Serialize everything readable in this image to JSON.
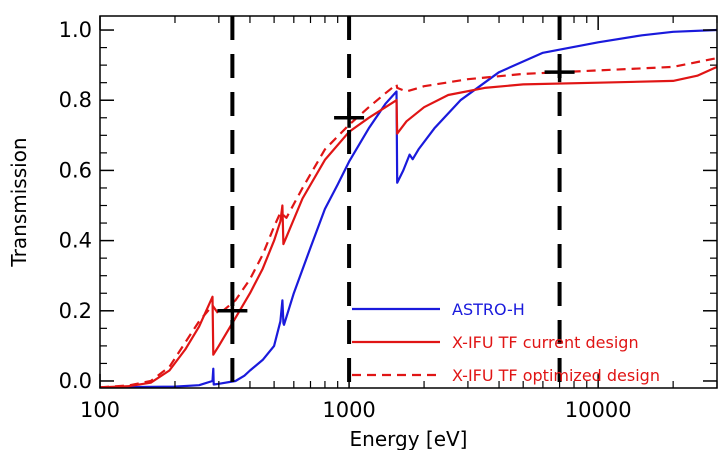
{
  "chart_data": {
    "type": "line",
    "xlabel": "Energy [eV]",
    "ylabel": "Transmission",
    "xscale": "log",
    "xlim": [
      100,
      30000
    ],
    "ylim": [
      -0.02,
      1.04
    ],
    "xticks": [
      {
        "value": 100,
        "label": "100"
      },
      {
        "value": 1000,
        "label": "1000"
      },
      {
        "value": 10000,
        "label": "10000"
      }
    ],
    "yticks": [
      {
        "value": 0.0,
        "label": "0.0"
      },
      {
        "value": 0.2,
        "label": "0.2"
      },
      {
        "value": 0.4,
        "label": "0.4"
      },
      {
        "value": 0.6,
        "label": "0.6"
      },
      {
        "value": 0.8,
        "label": "0.8"
      },
      {
        "value": 1.0,
        "label": "1.0"
      }
    ],
    "grid": false,
    "legend_position": "bottom-right",
    "series": [
      {
        "name": "ASTRO-H",
        "color": "#1a1adc",
        "style": "solid",
        "points": [
          [
            100,
            -0.018
          ],
          [
            200,
            -0.016
          ],
          [
            250,
            -0.012
          ],
          [
            283,
            0.0
          ],
          [
            285,
            0.035
          ],
          [
            286,
            -0.01
          ],
          [
            300,
            -0.008
          ],
          [
            350,
            0.0
          ],
          [
            380,
            0.015
          ],
          [
            400,
            0.03
          ],
          [
            450,
            0.06
          ],
          [
            500,
            0.1
          ],
          [
            530,
            0.17
          ],
          [
            540,
            0.23
          ],
          [
            545,
            0.165
          ],
          [
            548,
            0.16
          ],
          [
            600,
            0.25
          ],
          [
            700,
            0.38
          ],
          [
            800,
            0.49
          ],
          [
            900,
            0.56
          ],
          [
            1000,
            0.625
          ],
          [
            1200,
            0.72
          ],
          [
            1400,
            0.79
          ],
          [
            1550,
            0.825
          ],
          [
            1560,
            0.565
          ],
          [
            1650,
            0.6
          ],
          [
            1750,
            0.645
          ],
          [
            1800,
            0.632
          ],
          [
            1900,
            0.66
          ],
          [
            2200,
            0.72
          ],
          [
            2800,
            0.8
          ],
          [
            4000,
            0.88
          ],
          [
            6000,
            0.935
          ],
          [
            10000,
            0.965
          ],
          [
            15000,
            0.985
          ],
          [
            20000,
            0.995
          ],
          [
            30000,
            1.0
          ]
        ]
      },
      {
        "name": "X-IFU TF current design",
        "color": "#e01515",
        "style": "solid",
        "points": [
          [
            100,
            -0.018
          ],
          [
            130,
            -0.015
          ],
          [
            160,
            -0.005
          ],
          [
            190,
            0.03
          ],
          [
            220,
            0.09
          ],
          [
            250,
            0.155
          ],
          [
            283,
            0.24
          ],
          [
            285,
            0.075
          ],
          [
            300,
            0.1
          ],
          [
            350,
            0.18
          ],
          [
            400,
            0.25
          ],
          [
            450,
            0.32
          ],
          [
            500,
            0.4
          ],
          [
            530,
            0.455
          ],
          [
            540,
            0.5
          ],
          [
            545,
            0.39
          ],
          [
            560,
            0.41
          ],
          [
            650,
            0.52
          ],
          [
            800,
            0.63
          ],
          [
            1000,
            0.71
          ],
          [
            1200,
            0.75
          ],
          [
            1400,
            0.78
          ],
          [
            1550,
            0.8
          ],
          [
            1560,
            0.705
          ],
          [
            1700,
            0.74
          ],
          [
            2000,
            0.78
          ],
          [
            2500,
            0.815
          ],
          [
            3500,
            0.835
          ],
          [
            5000,
            0.845
          ],
          [
            10000,
            0.85
          ],
          [
            20000,
            0.855
          ],
          [
            25000,
            0.87
          ],
          [
            30000,
            0.895
          ]
        ]
      },
      {
        "name": "X-IFU TF optimized design",
        "color": "#e01515",
        "style": "dashed",
        "points": [
          [
            100,
            -0.018
          ],
          [
            130,
            -0.013
          ],
          [
            160,
            0.0
          ],
          [
            190,
            0.04
          ],
          [
            220,
            0.11
          ],
          [
            250,
            0.17
          ],
          [
            283,
            0.215
          ],
          [
            300,
            0.19
          ],
          [
            350,
            0.23
          ],
          [
            400,
            0.29
          ],
          [
            450,
            0.36
          ],
          [
            500,
            0.44
          ],
          [
            530,
            0.48
          ],
          [
            560,
            0.465
          ],
          [
            650,
            0.55
          ],
          [
            800,
            0.66
          ],
          [
            1000,
            0.73
          ],
          [
            1200,
            0.78
          ],
          [
            1400,
            0.82
          ],
          [
            1550,
            0.845
          ],
          [
            1560,
            0.835
          ],
          [
            1700,
            0.825
          ],
          [
            2000,
            0.84
          ],
          [
            3000,
            0.86
          ],
          [
            5000,
            0.875
          ],
          [
            10000,
            0.885
          ],
          [
            20000,
            0.895
          ],
          [
            30000,
            0.92
          ]
        ]
      }
    ],
    "vlines": [
      340,
      1000,
      7000
    ],
    "markers": [
      [
        340,
        0.2
      ],
      [
        1000,
        0.75
      ],
      [
        7000,
        0.88
      ]
    ]
  }
}
